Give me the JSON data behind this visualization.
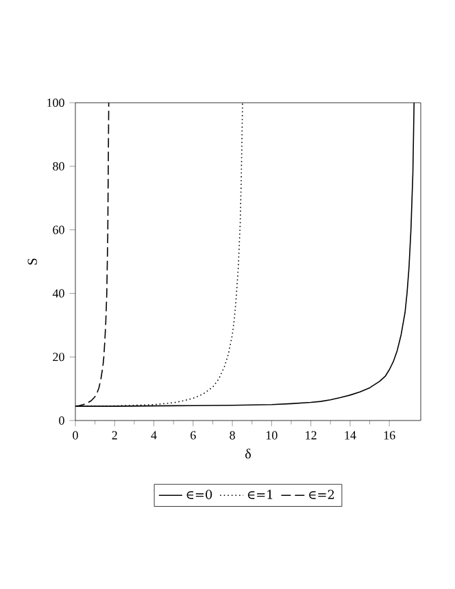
{
  "chart_data": {
    "type": "line",
    "xlabel": "δ",
    "ylabel": "S",
    "xlim": [
      0,
      17.6
    ],
    "ylim": [
      0,
      100
    ],
    "xticks": [
      0,
      2,
      4,
      6,
      8,
      10,
      12,
      14,
      16
    ],
    "yticks": [
      0,
      20,
      40,
      60,
      80,
      100
    ],
    "grid": false,
    "legend": "bottom",
    "marker": "none",
    "series": [
      {
        "name": "∈=0",
        "color": "#000000",
        "line_style": "solid",
        "x": [
          0,
          2,
          4,
          6,
          8,
          10,
          11,
          12,
          12.5,
          13,
          13.5,
          14,
          14.5,
          15,
          15.5,
          15.8,
          16,
          16.2,
          16.4,
          16.6,
          16.8,
          16.9,
          17,
          17.1,
          17.2,
          17.26
        ],
        "values": [
          4.5,
          4.5,
          4.6,
          4.7,
          4.8,
          5,
          5.3,
          5.7,
          6,
          6.5,
          7.2,
          8,
          9,
          10.3,
          12.3,
          14,
          16,
          18.5,
          22,
          27,
          34,
          40,
          48,
          60,
          78,
          100
        ]
      },
      {
        "name": "∈=1",
        "color": "#000000",
        "line_style": "dotted",
        "x": [
          0,
          1,
          2,
          3,
          4,
          5,
          5.5,
          6,
          6.5,
          7,
          7.3,
          7.6,
          7.8,
          8,
          8.1,
          8.2,
          8.3,
          8.4,
          8.45,
          8.52
        ],
        "values": [
          4.5,
          4.5,
          4.6,
          4.8,
          5,
          5.6,
          6.2,
          7,
          8.3,
          10.5,
          13,
          17,
          21,
          27,
          32,
          39,
          48,
          62,
          75,
          100
        ]
      },
      {
        "name": "∈=2",
        "color": "#000000",
        "line_style": "dashed",
        "x": [
          0,
          0.2,
          0.4,
          0.6,
          0.8,
          1,
          1.1,
          1.2,
          1.3,
          1.4,
          1.45,
          1.5,
          1.55,
          1.6,
          1.65,
          1.7
        ],
        "values": [
          4.5,
          4.7,
          5,
          5.5,
          6.2,
          7.5,
          8.6,
          10.3,
          13,
          17,
          20,
          25,
          31,
          40,
          58,
          100
        ]
      }
    ]
  }
}
